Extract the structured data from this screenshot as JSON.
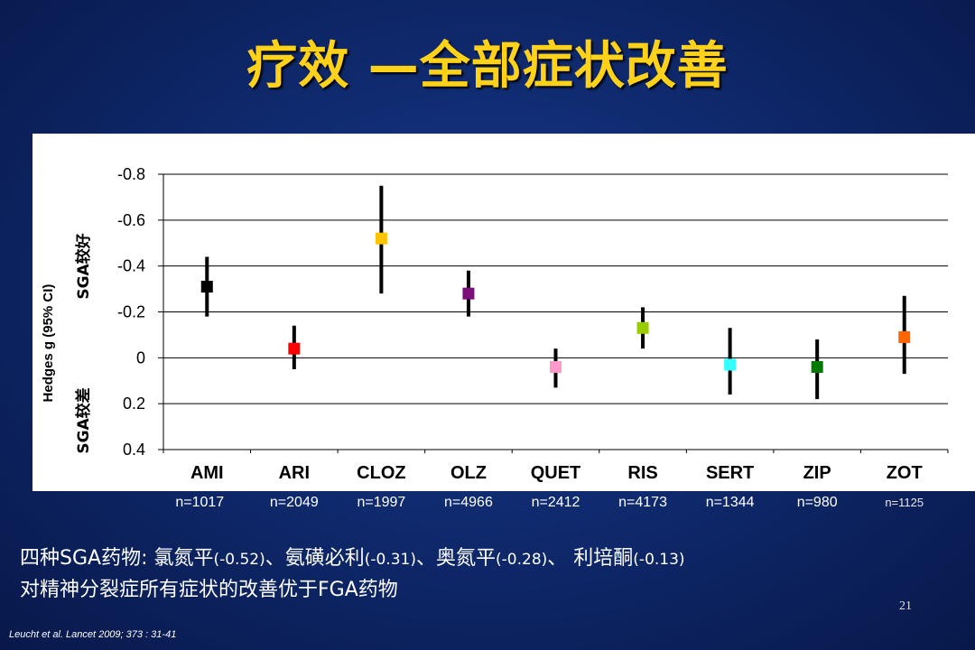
{
  "title": "疗效 —全部症状改善",
  "chart_data": {
    "type": "scatter",
    "subtype": "forest",
    "ylabel": "Hedges g (95% CI)",
    "y_upper_label": "SGA较好",
    "y_lower_label": "SGA较差",
    "ylim": [
      -0.8,
      0.4
    ],
    "y_inverted": true,
    "yticks": [
      -0.8,
      -0.6,
      -0.4,
      -0.2,
      0,
      0.2,
      0.4
    ],
    "ytick_labels": [
      "-0.8",
      "-0.6",
      "-0.4",
      "-0.2",
      "0",
      "0.2",
      "0.4"
    ],
    "grid": true,
    "categories": [
      "AMI",
      "ARI",
      "CLOZ",
      "OLZ",
      "QUET",
      "RIS",
      "SERT",
      "ZIP",
      "ZOT"
    ],
    "values": [
      -0.31,
      -0.04,
      -0.52,
      -0.28,
      0.04,
      -0.13,
      0.03,
      0.04,
      -0.09
    ],
    "ci_low": [
      -0.44,
      -0.14,
      -0.75,
      -0.38,
      -0.04,
      -0.22,
      -0.13,
      -0.08,
      -0.27
    ],
    "ci_high": [
      -0.18,
      0.05,
      -0.28,
      -0.18,
      0.13,
      -0.04,
      0.16,
      0.18,
      0.07
    ],
    "colors": [
      "#000000",
      "#ff0000",
      "#ffc400",
      "#7a0f7a",
      "#ff99cc",
      "#99cc00",
      "#33ffff",
      "#007a00",
      "#ff6600"
    ],
    "n_labels": [
      "n=1017",
      "n=2049",
      "n=1997",
      "n=4966",
      "n=2412",
      "n=4173",
      "n=1344",
      "n=980",
      "n=1125"
    ]
  },
  "summary": {
    "line1_pre": "四种SGA药物:  氯氮平",
    "line1_v1": "(-0.52)",
    "line1_mid1": "、氨磺必利",
    "line1_v2": "(-0.31)",
    "line1_mid2": "、奥氮平",
    "line1_v3": "(-0.28)",
    "line1_mid3": "、 利培酮",
    "line1_v4": "(-0.13)",
    "line2": "对精神分裂症所有症状的改善优于FGA药物"
  },
  "page_number": "21",
  "citation": "Leucht et al. Lancet 2009; 373 : 31-41"
}
